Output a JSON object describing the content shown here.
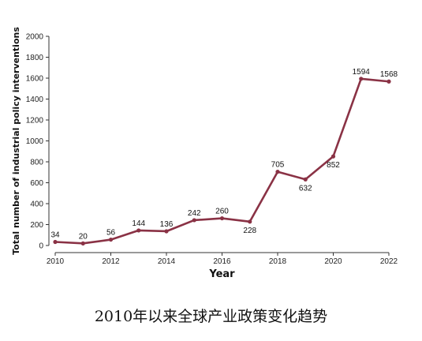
{
  "caption": "2010年以来全球产业政策变化趋势",
  "colors": {
    "series": "#8a3245",
    "axis": "#333333"
  },
  "chart_data": {
    "type": "line",
    "title": "",
    "xlabel": "Year",
    "ylabel": "Total number of industrial policy interventions",
    "xlim": [
      2010,
      2022
    ],
    "ylim": [
      0,
      2000
    ],
    "x_ticks": [
      2010,
      2012,
      2014,
      2016,
      2018,
      2020,
      2022
    ],
    "y_ticks": [
      0,
      200,
      400,
      600,
      800,
      1000,
      1200,
      1400,
      1600,
      1800,
      2000
    ],
    "grid": false,
    "legend": "none",
    "series": [
      {
        "x": [
          2010,
          2011,
          2012,
          2013,
          2014,
          2015,
          2016,
          2017,
          2018,
          2019,
          2020,
          2021,
          2022
        ],
        "values": [
          34,
          20,
          56,
          144,
          136,
          242,
          260,
          228,
          705,
          632,
          852,
          1594,
          1568
        ]
      }
    ]
  }
}
